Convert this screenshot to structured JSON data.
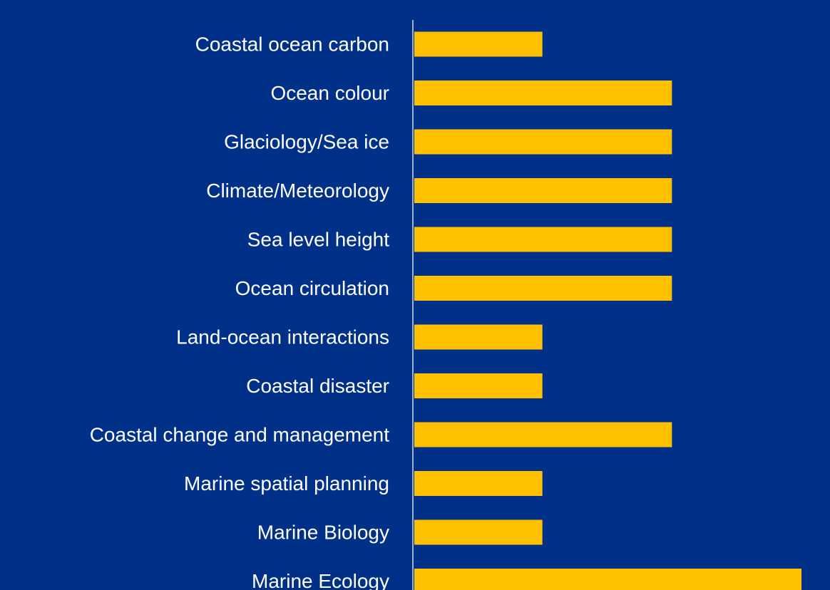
{
  "chart_data": {
    "type": "bar",
    "orientation": "horizontal",
    "categories": [
      "Coastal ocean carbon",
      "Ocean colour",
      "Glaciology/Sea ice",
      "Climate/Meteorology",
      "Sea level height",
      "Ocean circulation",
      "Land-ocean interactions",
      "Coastal disaster",
      "Coastal change and management",
      "Marine spatial planning",
      "Marine Biology",
      "Marine Ecology"
    ],
    "values": [
      1,
      2,
      2,
      2,
      2,
      2,
      1,
      1,
      2,
      1,
      1,
      3
    ],
    "xlim": [
      0,
      3
    ],
    "grid": false,
    "legend": "none",
    "colors": {
      "background": "#003087",
      "bar": "#FFC000",
      "axis": "#D9D9D9",
      "label": "#FFFFFF"
    }
  }
}
